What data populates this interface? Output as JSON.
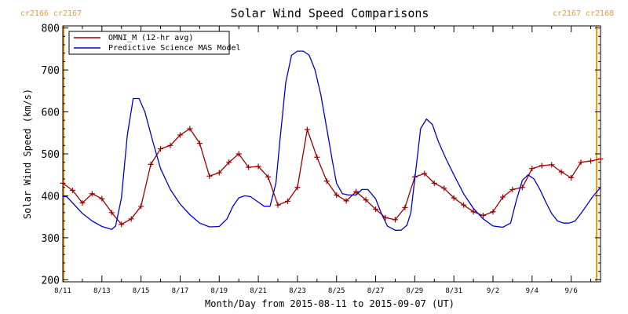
{
  "chart_data": {
    "type": "line",
    "title": "Solar Wind Speed Comparisons",
    "xlabel": "Month/Day from 2015-08-11 to 2015-09-07 (UT)",
    "ylabel": "Solar Wind Speed (km/s)",
    "xlim_days": [
      0,
      27.5
    ],
    "ylim": [
      195,
      805
    ],
    "y_ticks": [
      200,
      300,
      400,
      500,
      600,
      700,
      800
    ],
    "x_ticks": [
      {
        "day": 0,
        "label": "8/11"
      },
      {
        "day": 2,
        "label": "8/13"
      },
      {
        "day": 4,
        "label": "8/15"
      },
      {
        "day": 6,
        "label": "8/17"
      },
      {
        "day": 8,
        "label": "8/19"
      },
      {
        "day": 10,
        "label": "8/21"
      },
      {
        "day": 12,
        "label": "8/23"
      },
      {
        "day": 14,
        "label": "8/25"
      },
      {
        "day": 16,
        "label": "8/27"
      },
      {
        "day": 18,
        "label": "8/29"
      },
      {
        "day": 20,
        "label": "8/31"
      },
      {
        "day": 22,
        "label": "9/2"
      },
      {
        "day": 24,
        "label": "9/4"
      },
      {
        "day": 26,
        "label": "9/6"
      }
    ],
    "carrington_markers": [
      {
        "day": 0,
        "label_left": "cr2166",
        "label_right": "cr2167",
        "side": "left"
      },
      {
        "day": 27.3,
        "label_left": "cr2167",
        "label_right": "cr2168",
        "side": "right"
      }
    ],
    "legend_position": "top-left",
    "series": [
      {
        "name": "OMNI_M (12-hr avg)",
        "color": "#9a0000",
        "marker": "plus",
        "x": [
          0,
          0.5,
          1,
          1.5,
          2,
          2.5,
          3,
          3.5,
          4,
          4.5,
          5,
          5.5,
          6,
          6.5,
          7,
          7.5,
          8,
          8.5,
          9,
          9.5,
          10,
          10.5,
          11,
          11.5,
          12,
          12.5,
          13,
          13.5,
          14,
          14.5,
          15,
          15.5,
          16,
          16.5,
          17,
          17.5,
          18,
          18.5,
          19,
          19.5,
          20,
          20.5,
          21,
          21.5,
          22,
          22.5,
          23,
          23.5,
          24,
          24.5,
          25,
          25.5,
          26,
          26.5,
          27,
          27.5
        ],
        "y": [
          430,
          413,
          383,
          405,
          393,
          360,
          332,
          345,
          375,
          475,
          512,
          520,
          545,
          560,
          525,
          447,
          455,
          480,
          500,
          468,
          470,
          445,
          378,
          387,
          420,
          558,
          492,
          435,
          402,
          388,
          410,
          390,
          368,
          348,
          343,
          372,
          445,
          453,
          430,
          418,
          395,
          378,
          362,
          353,
          362,
          397,
          415,
          420,
          465,
          472,
          474,
          457,
          443,
          480,
          483,
          488
        ]
      },
      {
        "name": "Predictive Science MAS Model",
        "color": "#0000cc",
        "marker": "none",
        "x": [
          0,
          0.2,
          0.5,
          1,
          1.5,
          2,
          2.5,
          2.7,
          3,
          3.3,
          3.6,
          3.9,
          4.2,
          4.6,
          5,
          5.5,
          6,
          6.5,
          7,
          7.5,
          8,
          8.4,
          8.7,
          9,
          9.3,
          9.6,
          10,
          10.3,
          10.6,
          10.9,
          11.1,
          11.4,
          11.7,
          12,
          12.3,
          12.6,
          12.9,
          13.2,
          13.5,
          13.8,
          14,
          14.3,
          14.6,
          15,
          15.3,
          15.6,
          16,
          16.3,
          16.6,
          17,
          17.3,
          17.6,
          17.8,
          18,
          18.3,
          18.6,
          18.9,
          19.2,
          19.6,
          20,
          20.5,
          21,
          21.5,
          22,
          22.5,
          22.9,
          23.2,
          23.5,
          23.8,
          24.1,
          24.4,
          24.7,
          25,
          25.3,
          25.6,
          25.9,
          26.2,
          26.5,
          26.8,
          27.1,
          27.5
        ],
        "y": [
          398,
          398,
          383,
          358,
          340,
          327,
          320,
          328,
          395,
          545,
          632,
          632,
          600,
          530,
          465,
          415,
          380,
          355,
          335,
          326,
          327,
          345,
          375,
          395,
          400,
          398,
          385,
          375,
          375,
          430,
          530,
          670,
          735,
          745,
          745,
          735,
          700,
          640,
          560,
          480,
          430,
          405,
          402,
          402,
          415,
          415,
          393,
          357,
          328,
          318,
          318,
          330,
          360,
          440,
          560,
          583,
          570,
          530,
          488,
          450,
          405,
          370,
          345,
          328,
          325,
          335,
          390,
          437,
          450,
          440,
          415,
          385,
          358,
          340,
          335,
          335,
          340,
          358,
          378,
          398,
          420
        ]
      }
    ]
  }
}
